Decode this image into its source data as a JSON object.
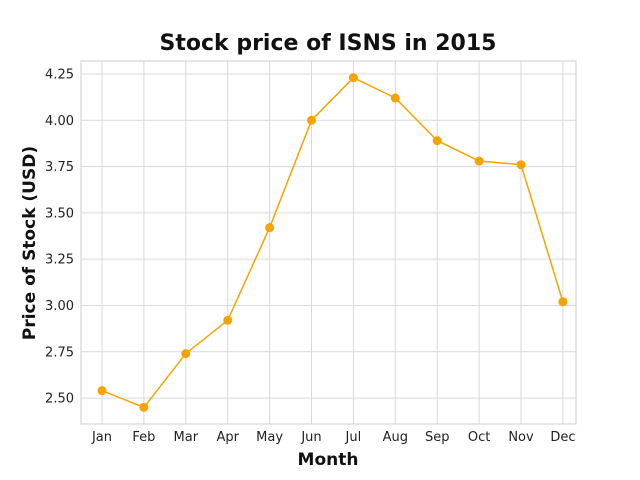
{
  "chart_data": {
    "type": "line",
    "title": "Stock price of ISNS in 2015",
    "xlabel": "Month",
    "ylabel": "Price of Stock (USD)",
    "categories": [
      "Jan",
      "Feb",
      "Mar",
      "Apr",
      "May",
      "Jun",
      "Jul",
      "Aug",
      "Sep",
      "Oct",
      "Nov",
      "Dec"
    ],
    "series": [
      {
        "values": [
          2.54,
          2.45,
          2.74,
          2.92,
          3.42,
          4.0,
          4.23,
          4.12,
          3.89,
          3.78,
          3.76,
          3.02
        ],
        "color": "#f5a300"
      }
    ],
    "yticks": [
      "2.50",
      "2.75",
      "3.00",
      "3.25",
      "3.50",
      "3.75",
      "4.00",
      "4.25"
    ],
    "ylim": [
      2.36,
      4.32
    ],
    "grid": true,
    "legend": "none"
  }
}
